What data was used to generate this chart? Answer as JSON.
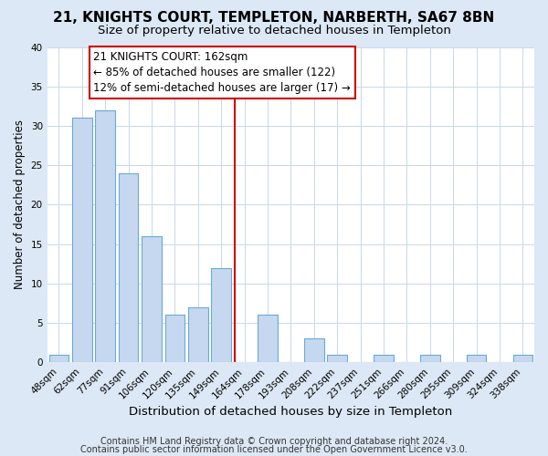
{
  "title": "21, KNIGHTS COURT, TEMPLETON, NARBERTH, SA67 8BN",
  "subtitle": "Size of property relative to detached houses in Templeton",
  "xlabel": "Distribution of detached houses by size in Templeton",
  "ylabel": "Number of detached properties",
  "bin_labels": [
    "48sqm",
    "62sqm",
    "77sqm",
    "91sqm",
    "106sqm",
    "120sqm",
    "135sqm",
    "149sqm",
    "164sqm",
    "178sqm",
    "193sqm",
    "208sqm",
    "222sqm",
    "237sqm",
    "251sqm",
    "266sqm",
    "280sqm",
    "295sqm",
    "309sqm",
    "324sqm",
    "338sqm"
  ],
  "bar_heights": [
    1,
    31,
    32,
    24,
    16,
    6,
    7,
    12,
    0,
    6,
    0,
    3,
    1,
    0,
    1,
    0,
    1,
    0,
    1,
    0,
    1
  ],
  "bar_color": "#c5d8f0",
  "bar_edge_color": "#6aaad4",
  "vline_color": "#cc0000",
  "annotation_title": "21 KNIGHTS COURT: 162sqm",
  "annotation_line1": "← 85% of detached houses are smaller (122)",
  "annotation_line2": "12% of semi-detached houses are larger (17) →",
  "annotation_box_facecolor": "#ffffff",
  "annotation_box_edgecolor": "#cc0000",
  "ylim": [
    0,
    40
  ],
  "yticks": [
    0,
    5,
    10,
    15,
    20,
    25,
    30,
    35,
    40
  ],
  "footer1": "Contains HM Land Registry data © Crown copyright and database right 2024.",
  "footer2": "Contains public sector information licensed under the Open Government Licence v3.0.",
  "title_fontsize": 11,
  "subtitle_fontsize": 9.5,
  "xlabel_fontsize": 9.5,
  "ylabel_fontsize": 8.5,
  "tick_fontsize": 7.5,
  "annotation_fontsize": 8.5,
  "footer_fontsize": 7,
  "figure_bg_color": "#dce8f5",
  "plot_bg_color": "#ffffff",
  "grid_color": "#c8d8e8"
}
